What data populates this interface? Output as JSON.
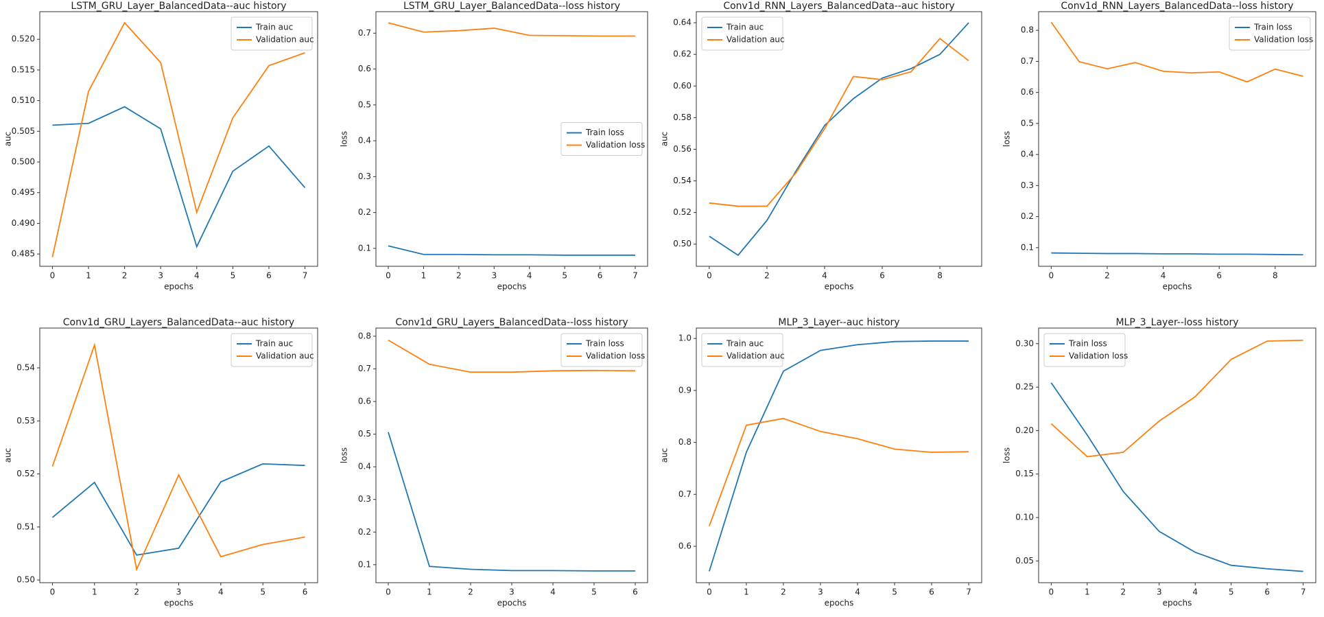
{
  "chart_data": [
    {
      "type": "line",
      "title": "LSTM_GRU_Layer_BalancedData--auc history",
      "xlabel": "epochs",
      "ylabel": "auc",
      "x": [
        0,
        1,
        2,
        3,
        4,
        5,
        6,
        7
      ],
      "xlim": [
        -0.35,
        7.35
      ],
      "xticks": [
        0,
        1,
        2,
        3,
        4,
        5,
        6,
        7
      ],
      "ylim": [
        0.483,
        0.5245
      ],
      "yticks": [
        0.485,
        {
          "value": 0.49,
          "label": "0.490"
        },
        0.495,
        {
          "value": 0.5,
          "label": "0.500"
        },
        0.505,
        {
          "value": 0.51,
          "label": "0.510"
        },
        0.515,
        {
          "value": 0.52,
          "label": "0.520"
        }
      ],
      "legend": "upper right",
      "series": [
        {
          "name": "Train auc",
          "color": "#1f77b4",
          "values": [
            0.506,
            0.5063,
            0.509,
            0.5054,
            0.4862,
            0.4985,
            0.5026,
            0.4958
          ]
        },
        {
          "name": "Validation auc",
          "color": "#ff7f0e",
          "values": [
            0.4845,
            0.5115,
            0.5227,
            0.5162,
            0.4918,
            0.5072,
            0.5157,
            0.5178
          ]
        }
      ]
    },
    {
      "type": "line",
      "title": "LSTM_GRU_Layer_BalancedData--loss history",
      "xlabel": "epochs",
      "ylabel": "loss",
      "x": [
        0,
        1,
        2,
        3,
        4,
        5,
        6,
        7
      ],
      "xlim": [
        -0.35,
        7.35
      ],
      "xticks": [
        0,
        1,
        2,
        3,
        4,
        5,
        6,
        7
      ],
      "ylim": [
        0.05,
        0.76
      ],
      "yticks": [
        0.1,
        0.2,
        0.3,
        0.4,
        0.5,
        0.6,
        0.7
      ],
      "legend": "center right",
      "series": [
        {
          "name": "Train loss",
          "color": "#1f77b4",
          "values": [
            0.107,
            0.083,
            0.083,
            0.082,
            0.082,
            0.081,
            0.081,
            0.081
          ]
        },
        {
          "name": "Validation loss",
          "color": "#ff7f0e",
          "values": [
            0.729,
            0.703,
            0.707,
            0.714,
            0.694,
            0.693,
            0.692,
            0.692
          ]
        }
      ]
    },
    {
      "type": "line",
      "title": "Conv1d_RNN_Layers_BalancedData--auc history",
      "xlabel": "epochs",
      "ylabel": "auc",
      "x": [
        0,
        1,
        2,
        3,
        4,
        5,
        6,
        7,
        8,
        9
      ],
      "xlim": [
        -0.45,
        9.45
      ],
      "xticks": [
        0,
        2,
        4,
        6,
        8
      ],
      "ylim": [
        0.486,
        0.647
      ],
      "yticks": [
        {
          "value": 0.5,
          "label": "0.50"
        },
        0.52,
        0.54,
        0.56,
        0.58,
        {
          "value": 0.6,
          "label": "0.60"
        },
        0.62,
        0.64
      ],
      "legend": "upper left",
      "series": [
        {
          "name": "Train auc",
          "color": "#1f77b4",
          "values": [
            0.505,
            0.493,
            0.515,
            0.546,
            0.575,
            0.592,
            0.605,
            0.611,
            0.62,
            0.64
          ]
        },
        {
          "name": "Validation auc",
          "color": "#ff7f0e",
          "values": [
            0.526,
            0.524,
            0.524,
            0.545,
            0.573,
            0.606,
            0.604,
            0.609,
            0.63,
            0.616
          ]
        }
      ]
    },
    {
      "type": "line",
      "title": "Conv1d_RNN_Layers_BalancedData--loss history",
      "xlabel": "epochs",
      "ylabel": "loss",
      "x": [
        0,
        1,
        2,
        3,
        4,
        5,
        6,
        7,
        8,
        9
      ],
      "xlim": [
        -0.45,
        9.45
      ],
      "xticks": [
        0,
        2,
        4,
        6,
        8
      ],
      "ylim": [
        0.04,
        0.86
      ],
      "yticks": [
        0.1,
        0.2,
        0.3,
        0.4,
        0.5,
        0.6,
        0.7,
        0.8
      ],
      "legend": "upper right",
      "series": [
        {
          "name": "Train loss",
          "color": "#1f77b4",
          "values": [
            0.083,
            0.082,
            0.081,
            0.081,
            0.08,
            0.08,
            0.079,
            0.079,
            0.078,
            0.077
          ]
        },
        {
          "name": "Validation loss",
          "color": "#ff7f0e",
          "values": [
            0.826,
            0.699,
            0.676,
            0.696,
            0.668,
            0.663,
            0.666,
            0.634,
            0.675,
            0.652
          ]
        }
      ]
    },
    {
      "type": "line",
      "title": "Conv1d_GRU_Layers_BalancedData--auc history",
      "xlabel": "epochs",
      "ylabel": "auc",
      "x": [
        0,
        1,
        2,
        3,
        4,
        5,
        6
      ],
      "xlim": [
        -0.3,
        6.3
      ],
      "xticks": [
        0,
        1,
        2,
        3,
        4,
        5,
        6
      ],
      "ylim": [
        0.4995,
        0.5475
      ],
      "yticks": [
        {
          "value": 0.5,
          "label": "0.50"
        },
        {
          "value": 0.51,
          "label": "0.51"
        },
        0.52,
        0.53,
        0.54
      ],
      "legend": "upper right",
      "series": [
        {
          "name": "Train auc",
          "color": "#1f77b4",
          "values": [
            0.5118,
            0.5184,
            0.5047,
            0.506,
            0.5185,
            0.5219,
            0.5216
          ]
        },
        {
          "name": "Validation auc",
          "color": "#ff7f0e",
          "values": [
            0.5214,
            0.5443,
            0.502,
            0.5198,
            0.5044,
            0.5067,
            0.5081
          ]
        }
      ]
    },
    {
      "type": "line",
      "title": "Conv1d_GRU_Layers_BalancedData--loss history",
      "xlabel": "epochs",
      "ylabel": "loss",
      "x": [
        0,
        1,
        2,
        3,
        4,
        5,
        6
      ],
      "xlim": [
        -0.3,
        6.3
      ],
      "xticks": [
        0,
        1,
        2,
        3,
        4,
        5,
        6
      ],
      "ylim": [
        0.045,
        0.825
      ],
      "yticks": [
        0.1,
        0.2,
        0.3,
        0.4,
        0.5,
        0.6,
        0.7,
        0.8
      ],
      "legend": "upper right",
      "series": [
        {
          "name": "Train loss",
          "color": "#1f77b4",
          "values": [
            0.506,
            0.095,
            0.086,
            0.082,
            0.082,
            0.081,
            0.081
          ]
        },
        {
          "name": "Validation loss",
          "color": "#ff7f0e",
          "values": [
            0.788,
            0.714,
            0.69,
            0.69,
            0.694,
            0.695,
            0.694
          ]
        }
      ]
    },
    {
      "type": "line",
      "title": "MLP_3_Layer--auc history",
      "xlabel": "epochs",
      "ylabel": "auc",
      "x": [
        0,
        1,
        2,
        3,
        4,
        5,
        6,
        7
      ],
      "xlim": [
        -0.35,
        7.35
      ],
      "xticks": [
        0,
        1,
        2,
        3,
        4,
        5,
        6,
        7
      ],
      "ylim": [
        0.53,
        1.02
      ],
      "yticks": [
        0.6,
        0.7,
        0.8,
        0.9,
        {
          "value": 1,
          "label": "1.0"
        }
      ],
      "legend": "upper left",
      "series": [
        {
          "name": "Train auc",
          "color": "#1f77b4",
          "values": [
            0.552,
            0.781,
            0.937,
            0.977,
            0.988,
            0.994,
            0.995,
            0.995
          ]
        },
        {
          "name": "Validation auc",
          "color": "#ff7f0e",
          "values": [
            0.639,
            0.833,
            0.846,
            0.821,
            0.807,
            0.787,
            0.781,
            0.782
          ]
        }
      ]
    },
    {
      "type": "line",
      "title": "MLP_3_Layer--loss history",
      "xlabel": "epochs",
      "ylabel": "loss",
      "x": [
        0,
        1,
        2,
        3,
        4,
        5,
        6,
        7
      ],
      "xlim": [
        -0.35,
        7.35
      ],
      "xticks": [
        0,
        1,
        2,
        3,
        4,
        5,
        6,
        7
      ],
      "ylim": [
        0.025,
        0.318
      ],
      "yticks": [
        0.05,
        {
          "value": 0.1,
          "label": "0.10"
        },
        0.15,
        {
          "value": 0.2,
          "label": "0.20"
        },
        0.25,
        {
          "value": 0.3,
          "label": "0.30"
        }
      ],
      "legend": "upper left",
      "series": [
        {
          "name": "Train loss",
          "color": "#1f77b4",
          "values": [
            0.255,
            0.195,
            0.13,
            0.084,
            0.06,
            0.045,
            0.041,
            0.038
          ]
        },
        {
          "name": "Validation loss",
          "color": "#ff7f0e",
          "values": [
            0.208,
            0.17,
            0.175,
            0.211,
            0.239,
            0.282,
            0.303,
            0.304
          ]
        }
      ]
    }
  ]
}
